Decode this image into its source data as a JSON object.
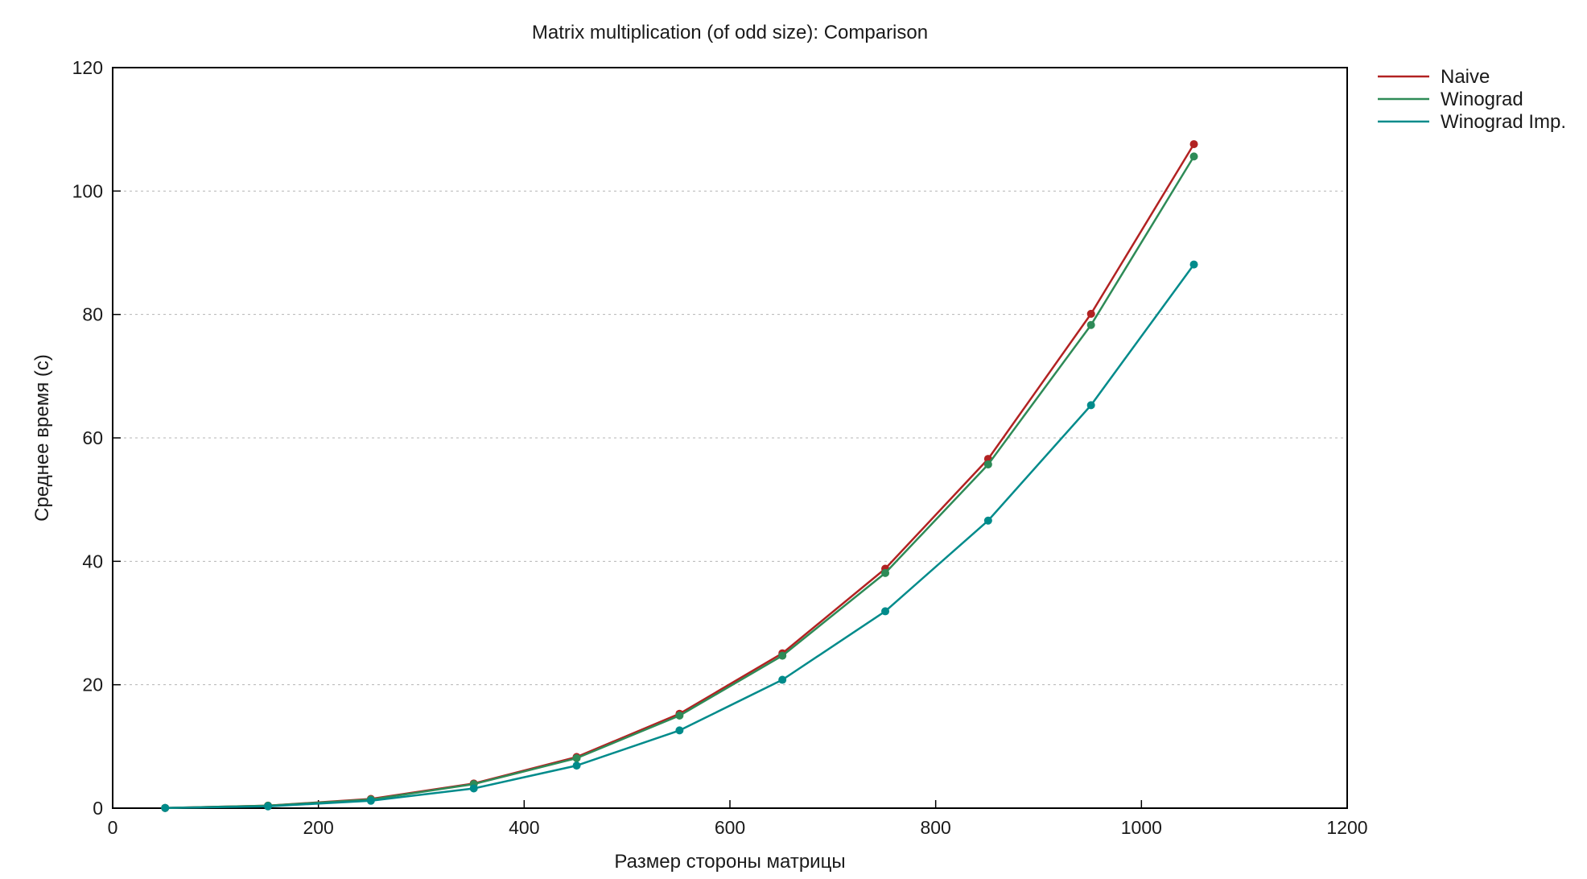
{
  "chart_data": {
    "type": "line",
    "title": "Matrix multiplication (of odd size): Comparison",
    "xlabel": "Размер стороны матрицы",
    "ylabel": "Среднее время (с)",
    "xlim": [
      0,
      1200
    ],
    "ylim": [
      0,
      120
    ],
    "xticks": [
      "0",
      "200",
      "400",
      "600",
      "800",
      "1000",
      "1200"
    ],
    "yticks": [
      "0",
      "20",
      "40",
      "60",
      "80",
      "100",
      "120"
    ],
    "grid": "horizontal dashed",
    "legend_position": "outside-top-right",
    "x": [
      51,
      151,
      251,
      351,
      451,
      551,
      651,
      751,
      851,
      951,
      1051
    ],
    "series": [
      {
        "name": "Naive",
        "color": "#b22222",
        "values": [
          0.04,
          0.4,
          1.5,
          4.0,
          8.3,
          15.3,
          25.1,
          38.8,
          56.6,
          80.1,
          107.6
        ]
      },
      {
        "name": "Winograd",
        "color": "#2e8b57",
        "values": [
          0.04,
          0.4,
          1.4,
          3.9,
          8.1,
          15.0,
          24.7,
          38.1,
          55.7,
          78.3,
          105.6
        ]
      },
      {
        "name": "Winograd Imp.",
        "color": "#008b8b",
        "values": [
          0.03,
          0.3,
          1.2,
          3.2,
          6.9,
          12.6,
          20.8,
          31.9,
          46.6,
          65.3,
          88.1
        ]
      }
    ]
  }
}
